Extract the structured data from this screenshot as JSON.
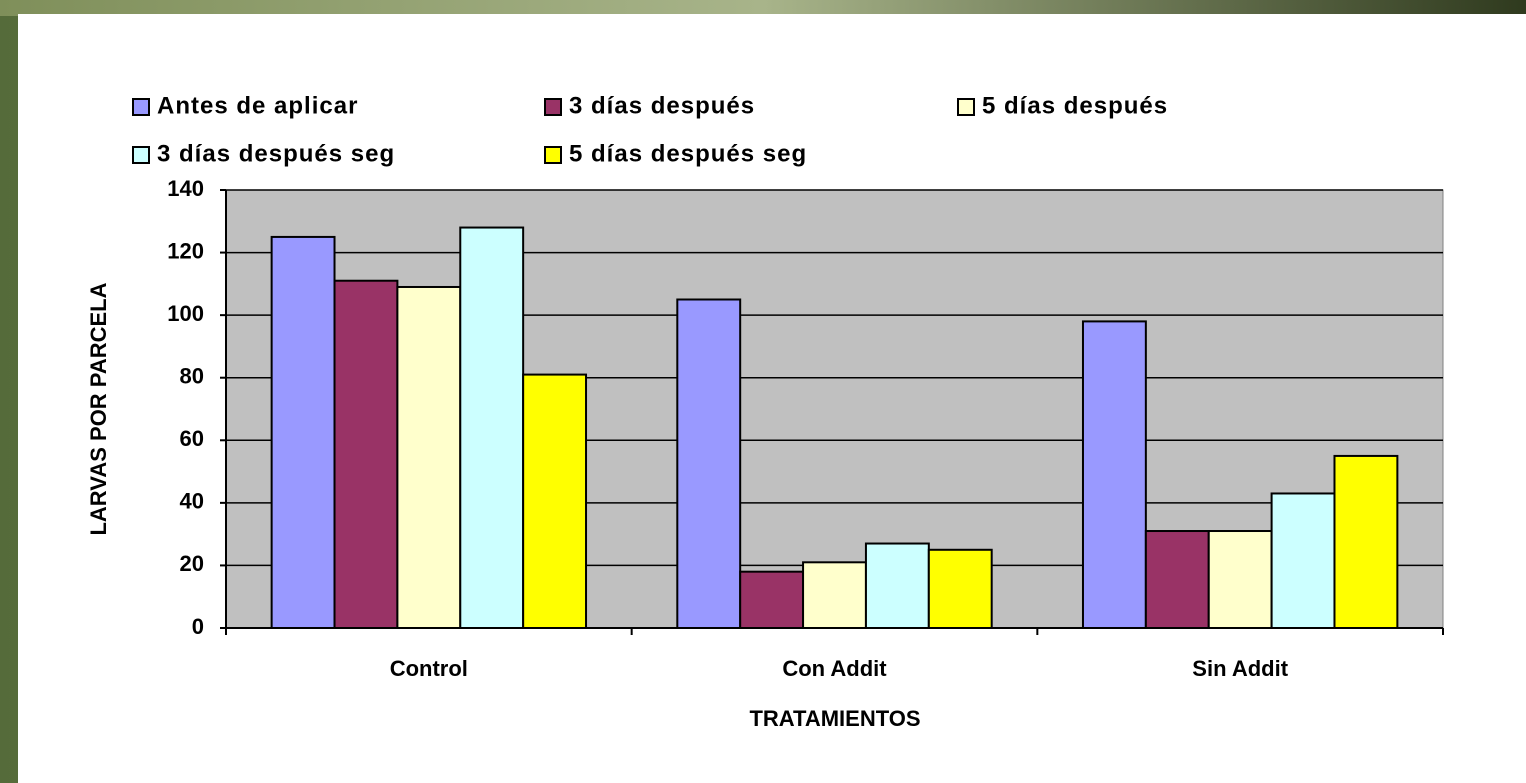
{
  "chart_data": {
    "type": "bar",
    "x_label": "TRATAMIENTOS",
    "y_label": "LARVAS POR PARCELA",
    "categories": [
      "Control",
      "Con Addit",
      "Sin Addit"
    ],
    "series": [
      {
        "name": "Antes de aplicar",
        "color": "#9999ff",
        "values": [
          125,
          105,
          98
        ]
      },
      {
        "name": "3 días después",
        "color": "#993366",
        "values": [
          111,
          18,
          31
        ]
      },
      {
        "name": "5 días después",
        "color": "#ffffcc",
        "values": [
          109,
          21,
          31
        ]
      },
      {
        "name": "3 días después seg",
        "color": "#ccffff",
        "values": [
          128,
          27,
          43
        ]
      },
      {
        "name": "5 días después seg",
        "color": "#ffff00",
        "values": [
          81,
          25,
          55
        ]
      }
    ],
    "ylim": [
      0,
      140
    ],
    "yticks": [
      0,
      20,
      40,
      60,
      80,
      100,
      120,
      140
    ],
    "grid": true
  }
}
